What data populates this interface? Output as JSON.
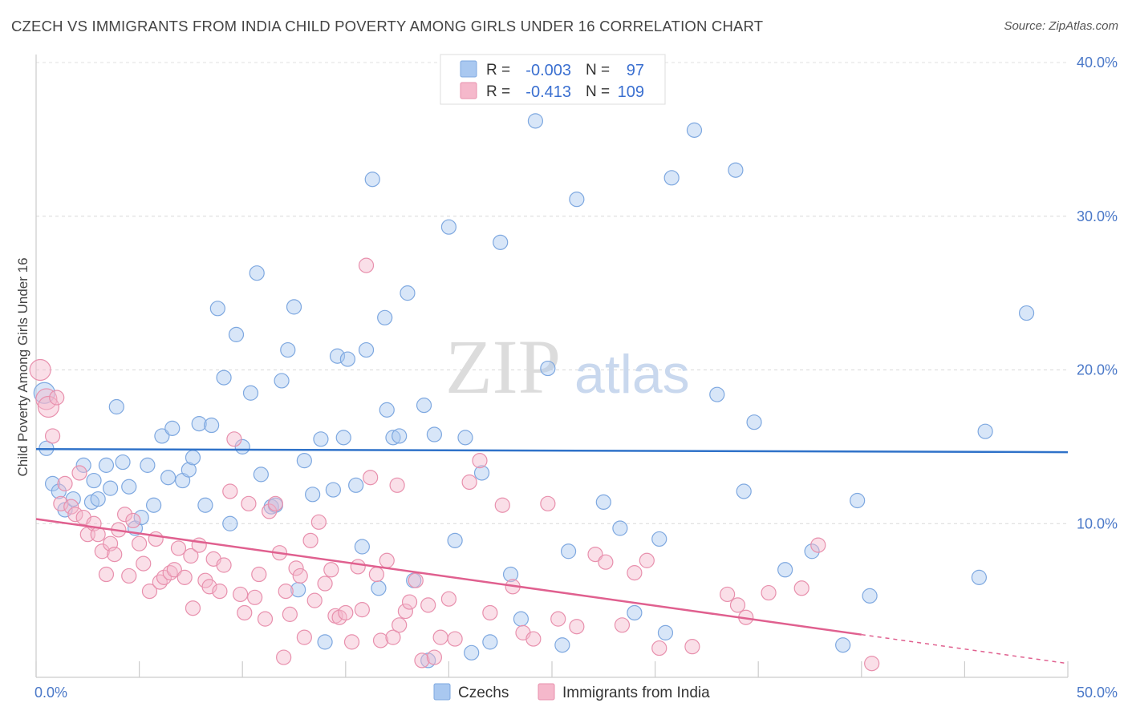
{
  "title": "CZECH VS IMMIGRANTS FROM INDIA CHILD POVERTY AMONG GIRLS UNDER 16 CORRELATION CHART",
  "source": "Source: ZipAtlas.com",
  "watermark": {
    "zip": "ZIP",
    "atlas": "atlas"
  },
  "legend_top": {
    "r_label": "R =",
    "n_label": "N =",
    "rows": [
      {
        "r": "-0.003",
        "n": "97",
        "color": "#a9c8f0"
      },
      {
        "r": "-0.413",
        "n": "109",
        "color": "#f5b8cb"
      }
    ]
  },
  "colors": {
    "czech_line": "#2f72c9",
    "india_line": "#e0608f",
    "czech_fill": "#a9c8f0",
    "india_fill": "#f5b8cb",
    "accent_text": "#4a78c8"
  },
  "chart_data": {
    "type": "scatter",
    "title": "CZECH VS IMMIGRANTS FROM INDIA CHILD POVERTY AMONG GIRLS UNDER 16 CORRELATION CHART",
    "xlabel": "",
    "ylabel": "Child Poverty Among Girls Under 16",
    "xlim": [
      0,
      50
    ],
    "ylim": [
      0,
      40
    ],
    "x_tick_labels": [
      "0.0%",
      "50.0%"
    ],
    "y_ticks": [
      10,
      20,
      30,
      40
    ],
    "y_tick_labels": [
      "10.0%",
      "20.0%",
      "30.0%",
      "40.0%"
    ],
    "grid": true,
    "legend": "bottom-center",
    "series": [
      {
        "name": "Czechs",
        "color": "#a9c8f0",
        "trend": {
          "x": [
            0,
            50
          ],
          "y": [
            14.85,
            14.65
          ],
          "dashed_from": null
        },
        "points": [
          [
            0.5,
            14.9
          ],
          [
            0.8,
            12.6
          ],
          [
            1.1,
            12.1
          ],
          [
            1.4,
            10.9
          ],
          [
            1.8,
            11.6
          ],
          [
            2.3,
            13.8
          ],
          [
            2.7,
            11.4
          ],
          [
            3.0,
            11.6
          ],
          [
            3.4,
            13.8
          ],
          [
            3.6,
            12.3
          ],
          [
            3.9,
            17.6
          ],
          [
            4.2,
            14.0
          ],
          [
            4.5,
            12.4
          ],
          [
            4.8,
            9.7
          ],
          [
            5.1,
            10.4
          ],
          [
            5.4,
            13.8
          ],
          [
            5.7,
            11.2
          ],
          [
            6.1,
            15.7
          ],
          [
            6.4,
            13.0
          ],
          [
            6.6,
            16.2
          ],
          [
            7.1,
            12.8
          ],
          [
            7.4,
            13.5
          ],
          [
            7.6,
            14.3
          ],
          [
            7.9,
            16.5
          ],
          [
            8.2,
            11.2
          ],
          [
            8.5,
            16.4
          ],
          [
            8.8,
            24.0
          ],
          [
            9.1,
            19.5
          ],
          [
            9.4,
            10.0
          ],
          [
            9.7,
            22.3
          ],
          [
            10.0,
            15.0
          ],
          [
            10.4,
            18.5
          ],
          [
            10.7,
            26.3
          ],
          [
            10.9,
            13.2
          ],
          [
            11.4,
            11.1
          ],
          [
            11.6,
            11.2
          ],
          [
            11.9,
            19.3
          ],
          [
            12.2,
            21.3
          ],
          [
            12.5,
            24.1
          ],
          [
            12.7,
            5.7
          ],
          [
            13.0,
            14.1
          ],
          [
            13.4,
            11.9
          ],
          [
            13.8,
            15.5
          ],
          [
            14.0,
            2.3
          ],
          [
            14.4,
            12.2
          ],
          [
            14.6,
            20.9
          ],
          [
            14.9,
            15.6
          ],
          [
            15.1,
            20.7
          ],
          [
            15.5,
            12.5
          ],
          [
            15.8,
            8.5
          ],
          [
            16.0,
            21.3
          ],
          [
            16.3,
            32.4
          ],
          [
            16.6,
            5.8
          ],
          [
            16.9,
            23.4
          ],
          [
            17.0,
            17.4
          ],
          [
            17.3,
            15.6
          ],
          [
            17.6,
            15.7
          ],
          [
            18.0,
            25.0
          ],
          [
            18.3,
            6.3
          ],
          [
            18.8,
            17.7
          ],
          [
            19.0,
            1.1
          ],
          [
            19.3,
            15.8
          ],
          [
            20.0,
            29.3
          ],
          [
            20.3,
            8.9
          ],
          [
            20.8,
            15.6
          ],
          [
            21.1,
            1.6
          ],
          [
            21.6,
            13.3
          ],
          [
            22.0,
            2.3
          ],
          [
            22.5,
            28.3
          ],
          [
            23.0,
            6.7
          ],
          [
            23.5,
            3.8
          ],
          [
            24.2,
            36.2
          ],
          [
            24.8,
            20.1
          ],
          [
            25.5,
            2.1
          ],
          [
            25.8,
            8.2
          ],
          [
            26.2,
            31.1
          ],
          [
            27.5,
            11.4
          ],
          [
            28.3,
            9.7
          ],
          [
            29.0,
            4.2
          ],
          [
            30.2,
            9.0
          ],
          [
            30.5,
            2.9
          ],
          [
            30.8,
            32.5
          ],
          [
            31.9,
            35.6
          ],
          [
            33.0,
            18.4
          ],
          [
            33.9,
            33.0
          ],
          [
            34.3,
            12.1
          ],
          [
            34.8,
            16.6
          ],
          [
            36.3,
            7.0
          ],
          [
            37.6,
            8.2
          ],
          [
            39.1,
            2.1
          ],
          [
            39.8,
            11.5
          ],
          [
            40.4,
            5.3
          ],
          [
            46.0,
            16.0
          ],
          [
            45.7,
            6.5
          ],
          [
            48.0,
            23.7
          ],
          [
            0.4,
            18.5
          ],
          [
            2.8,
            12.8
          ]
        ]
      },
      {
        "name": "Immigrants from India",
        "color": "#f5b8cb",
        "trend": {
          "x": [
            0,
            50
          ],
          "y": [
            10.3,
            0.9
          ],
          "dashed_from": 40
        },
        "points": [
          [
            0.2,
            20.0
          ],
          [
            0.5,
            18.1
          ],
          [
            0.6,
            17.6
          ],
          [
            0.8,
            15.7
          ],
          [
            1.0,
            18.2
          ],
          [
            1.2,
            11.3
          ],
          [
            1.4,
            12.6
          ],
          [
            1.7,
            11.1
          ],
          [
            1.9,
            10.6
          ],
          [
            2.1,
            13.3
          ],
          [
            2.3,
            10.4
          ],
          [
            2.5,
            9.3
          ],
          [
            2.8,
            10.0
          ],
          [
            3.0,
            9.3
          ],
          [
            3.2,
            8.2
          ],
          [
            3.4,
            6.7
          ],
          [
            3.6,
            8.7
          ],
          [
            3.8,
            8.0
          ],
          [
            4.0,
            9.6
          ],
          [
            4.3,
            10.6
          ],
          [
            4.5,
            6.6
          ],
          [
            4.7,
            10.2
          ],
          [
            5.0,
            8.7
          ],
          [
            5.2,
            7.4
          ],
          [
            5.5,
            5.6
          ],
          [
            5.8,
            9.0
          ],
          [
            6.0,
            6.2
          ],
          [
            6.2,
            6.5
          ],
          [
            6.5,
            6.8
          ],
          [
            6.7,
            7.0
          ],
          [
            6.9,
            8.4
          ],
          [
            7.2,
            6.5
          ],
          [
            7.5,
            7.9
          ],
          [
            7.6,
            4.5
          ],
          [
            7.9,
            8.6
          ],
          [
            8.2,
            6.3
          ],
          [
            8.4,
            5.9
          ],
          [
            8.6,
            7.7
          ],
          [
            8.9,
            5.6
          ],
          [
            9.1,
            7.3
          ],
          [
            9.4,
            12.1
          ],
          [
            9.6,
            15.5
          ],
          [
            9.9,
            5.4
          ],
          [
            10.1,
            4.2
          ],
          [
            10.3,
            11.3
          ],
          [
            10.6,
            5.2
          ],
          [
            10.8,
            6.7
          ],
          [
            11.1,
            3.8
          ],
          [
            11.3,
            10.8
          ],
          [
            11.6,
            11.3
          ],
          [
            11.8,
            8.1
          ],
          [
            12.1,
            5.6
          ],
          [
            12.3,
            4.1
          ],
          [
            12.6,
            7.1
          ],
          [
            12.8,
            6.6
          ],
          [
            13.0,
            2.6
          ],
          [
            13.3,
            8.9
          ],
          [
            13.5,
            5.0
          ],
          [
            13.7,
            10.1
          ],
          [
            14.0,
            6.1
          ],
          [
            14.3,
            7.0
          ],
          [
            14.5,
            4.0
          ],
          [
            14.7,
            3.9
          ],
          [
            15.0,
            4.2
          ],
          [
            15.3,
            2.3
          ],
          [
            15.6,
            7.2
          ],
          [
            15.8,
            4.4
          ],
          [
            16.2,
            13.0
          ],
          [
            16.5,
            6.7
          ],
          [
            16.7,
            2.4
          ],
          [
            17.0,
            7.6
          ],
          [
            17.3,
            2.6
          ],
          [
            17.6,
            3.4
          ],
          [
            17.9,
            4.3
          ],
          [
            18.1,
            4.9
          ],
          [
            18.4,
            6.3
          ],
          [
            18.7,
            1.1
          ],
          [
            19.0,
            4.7
          ],
          [
            19.3,
            1.3
          ],
          [
            19.6,
            2.6
          ],
          [
            20.0,
            5.1
          ],
          [
            20.3,
            2.5
          ],
          [
            21.0,
            12.7
          ],
          [
            21.5,
            14.1
          ],
          [
            22.0,
            4.2
          ],
          [
            22.6,
            11.2
          ],
          [
            23.1,
            5.9
          ],
          [
            23.6,
            2.9
          ],
          [
            24.1,
            2.5
          ],
          [
            24.8,
            11.3
          ],
          [
            25.3,
            3.8
          ],
          [
            26.2,
            3.3
          ],
          [
            27.1,
            8.0
          ],
          [
            27.6,
            7.5
          ],
          [
            28.4,
            3.4
          ],
          [
            29.0,
            6.8
          ],
          [
            29.6,
            7.6
          ],
          [
            30.2,
            1.9
          ],
          [
            31.8,
            2.0
          ],
          [
            33.5,
            5.4
          ],
          [
            34.0,
            4.7
          ],
          [
            34.4,
            3.9
          ],
          [
            35.5,
            5.5
          ],
          [
            37.1,
            5.8
          ],
          [
            37.9,
            8.6
          ],
          [
            16.0,
            26.8
          ],
          [
            12.0,
            1.3
          ],
          [
            40.5,
            0.9
          ],
          [
            17.5,
            12.5
          ]
        ]
      }
    ]
  },
  "legend_bottom": [
    {
      "label": "Czechs",
      "color": "#a9c8f0"
    },
    {
      "label": "Immigrants from India",
      "color": "#f5b8cb"
    }
  ]
}
